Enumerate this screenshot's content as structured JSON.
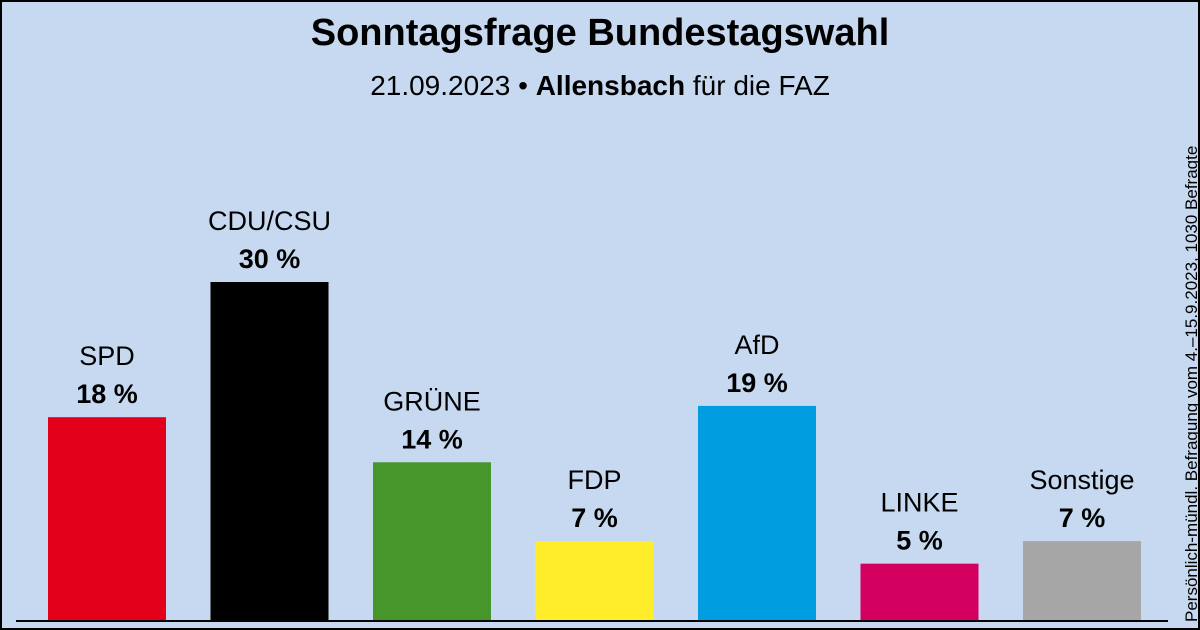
{
  "title": "Sonntagsfrage Bundestagswahl",
  "subtitle": {
    "date": "21.09.2023",
    "separator": "•",
    "institute": "Allensbach",
    "client": "für die FAZ"
  },
  "side_note": "Persönlich-mündl. Befragung vom 4.–15.9.2023, 1030 Befragte",
  "colors": {
    "background": "#c6d9f0",
    "axis": "#000000"
  },
  "chart_data": {
    "type": "bar",
    "unit": "%",
    "categories": [
      "SPD",
      "CDU/CSU",
      "GRÜNE",
      "FDP",
      "AfD",
      "LINKE",
      "Sonstige"
    ],
    "values": [
      18,
      30,
      14,
      7,
      19,
      5,
      7
    ],
    "value_labels": [
      "18 %",
      "30 %",
      "14 %",
      "7 %",
      "19 %",
      "5 %",
      "7 %"
    ],
    "colors": [
      "#e3001b",
      "#000000",
      "#46962b",
      "#ffed2c",
      "#009ee0",
      "#d4005f",
      "#a6a6a6"
    ],
    "ylim": [
      0,
      30
    ],
    "grid": false,
    "legend": "none"
  }
}
